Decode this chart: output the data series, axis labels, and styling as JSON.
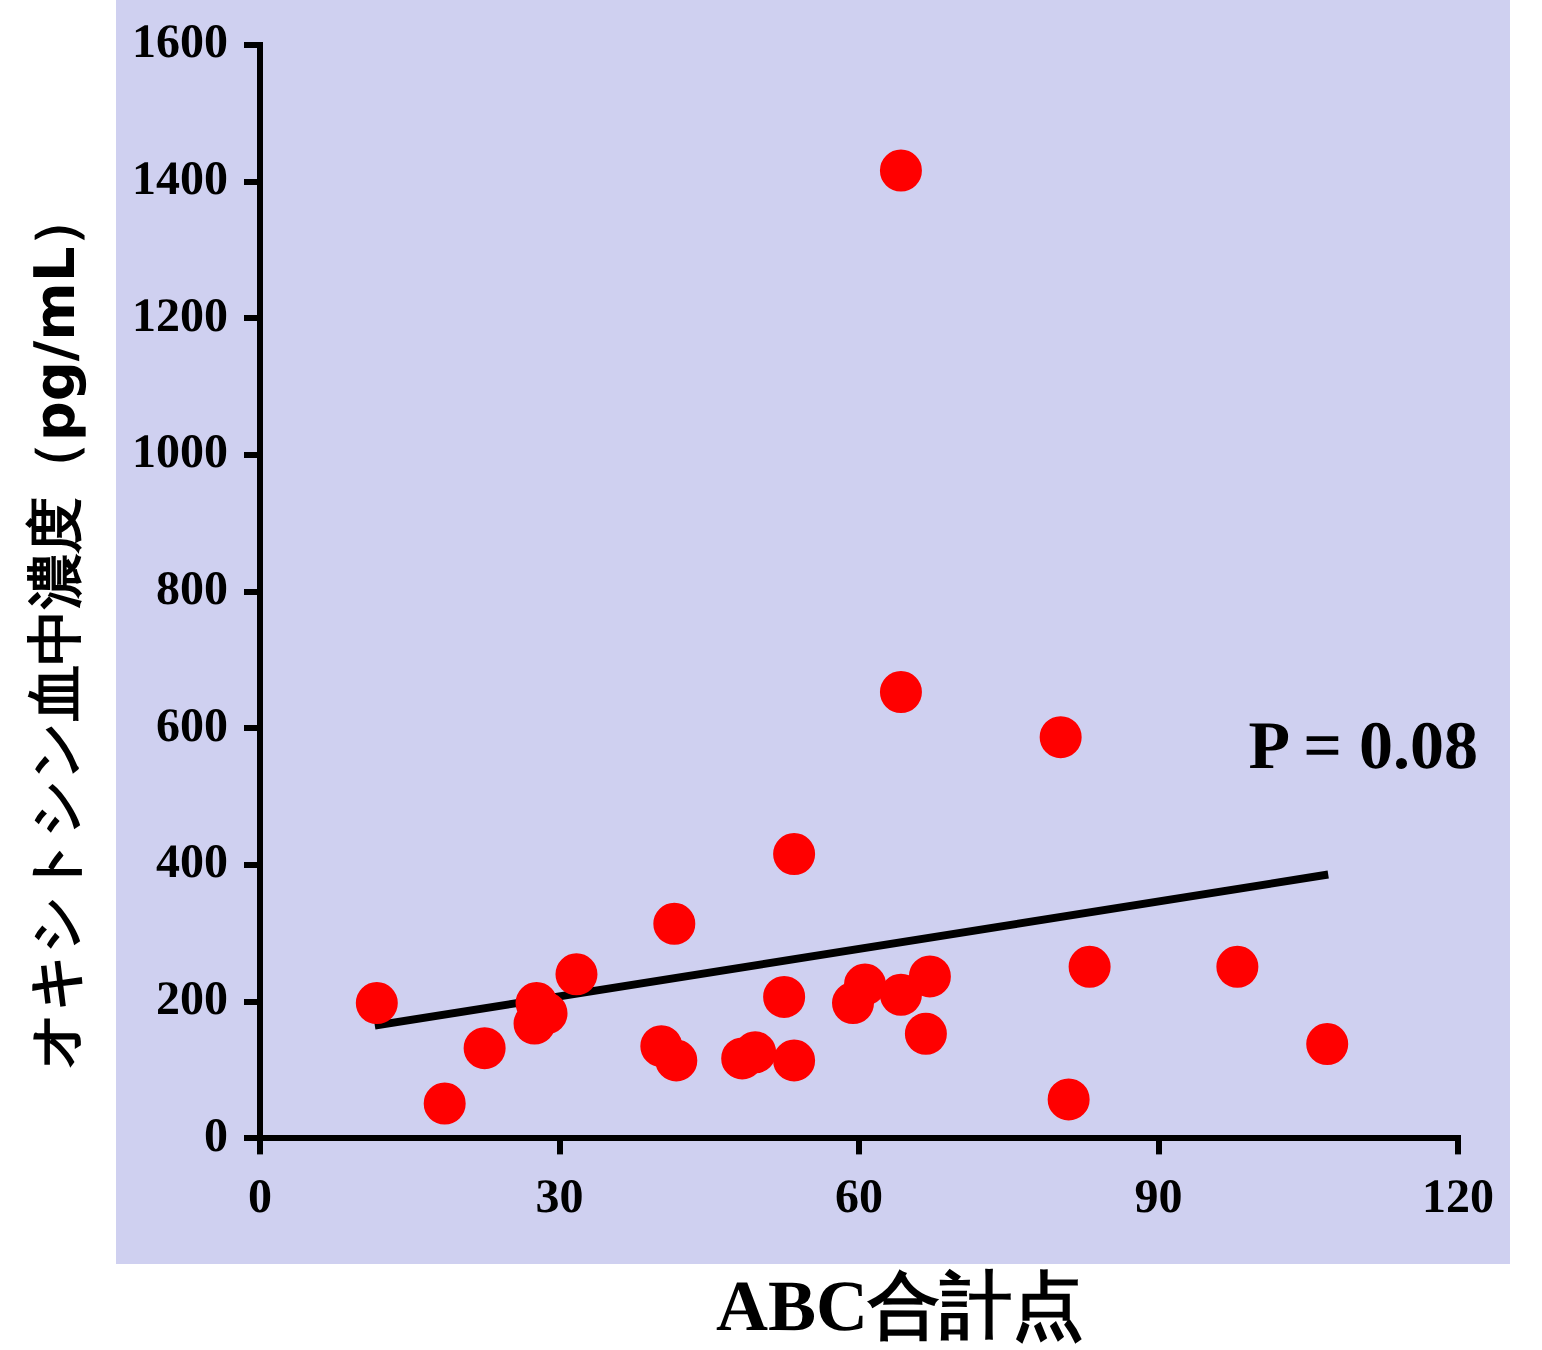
{
  "chart_data": {
    "type": "scatter",
    "xlabel": "ABC合計点",
    "ylabel": "オキシトシン血中濃度（pg/mL）",
    "xlim": [
      0,
      120
    ],
    "xticks": [
      0,
      30,
      60,
      90,
      120
    ],
    "ylim": [
      0,
      1600
    ],
    "yticks": [
      0,
      200,
      400,
      600,
      800,
      1000,
      1200,
      1400,
      1600
    ],
    "grid": false,
    "legend": false,
    "marker": "circle",
    "annotations": [
      "P = 0.08"
    ],
    "series": [
      {
        "color": "#ff0000",
        "x": [
          11.7,
          18.5,
          22.5,
          27.7,
          27.5,
          28.7,
          31.7,
          41.5,
          40.2,
          41.7,
          48.3,
          49.6,
          52.5,
          53.5,
          53.5,
          59.4,
          60.6,
          64.2,
          64.2,
          64.2,
          67.1,
          66.7,
          80.2,
          81,
          83.1,
          97.9,
          106.9
        ],
        "values": [
          198,
          51,
          132,
          198,
          168,
          183,
          240,
          314,
          135,
          114,
          117,
          126,
          207,
          114,
          416,
          198,
          225,
          1416,
          653,
          210,
          237,
          153,
          587,
          57,
          251,
          251,
          138
        ]
      },
      {
        "type": "line",
        "color": "#000000",
        "x": [
          11.5,
          107
        ],
        "values": [
          165,
          386
        ],
        "marker": "none",
        "line_style": "solid"
      }
    ]
  }
}
